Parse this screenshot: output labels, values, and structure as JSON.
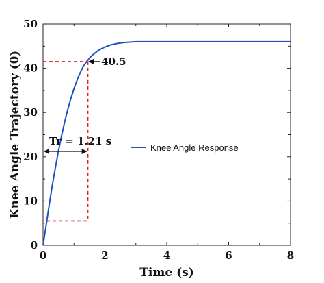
{
  "chart_data": {
    "type": "line",
    "title": "",
    "xlabel": "Time (s)",
    "ylabel": "Knee Angle Trajectory (θ)",
    "xlim": [
      0,
      8
    ],
    "ylim": [
      0,
      50
    ],
    "x_ticks": [
      "0",
      "2",
      "4",
      "6",
      "8"
    ],
    "y_ticks": [
      "0",
      "10",
      "20",
      "30",
      "40",
      "50"
    ],
    "grid": false,
    "legend_position": "center-right",
    "series": [
      {
        "name": "Knee Angle Response",
        "color": "#1f4fbf",
        "x": [
          0,
          0.1,
          0.2,
          0.3,
          0.4,
          0.5,
          0.6,
          0.7,
          0.8,
          0.9,
          1.0,
          1.1,
          1.2,
          1.3,
          1.4,
          1.5,
          1.6,
          1.8,
          2.0,
          2.2,
          2.4,
          2.6,
          2.8,
          3.0,
          3.5,
          4.0,
          5.0,
          6.0,
          7.0,
          8.0
        ],
        "values": [
          0,
          4.5,
          9.2,
          13.6,
          17.6,
          21.4,
          24.8,
          27.9,
          30.7,
          33.2,
          35.4,
          37.3,
          39.0,
          40.4,
          41.4,
          42.3,
          43.0,
          44.1,
          44.8,
          45.3,
          45.6,
          45.8,
          45.9,
          46.0,
          46.0,
          46.0,
          46.0,
          46.0,
          46.0,
          46.0
        ]
      }
    ],
    "annotations": {
      "peak_label": "40.5",
      "rise_time_label": "Tr = 1.21 s"
    },
    "reference_lines": {
      "color": "#e02020",
      "rise_time_x": 1.45,
      "upper_level": 41.5,
      "lower_level": 5.5
    }
  }
}
